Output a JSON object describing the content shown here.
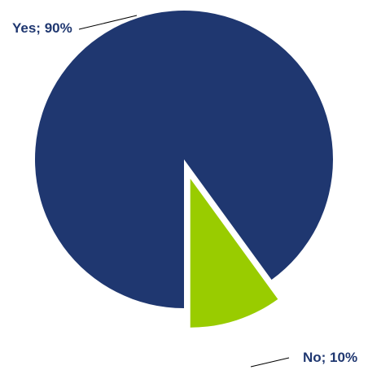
{
  "chart_data": {
    "type": "pie",
    "title": "",
    "exploded": true,
    "slices": [
      {
        "category": "Yes",
        "value": 90,
        "label": "Yes; 90%",
        "color": "#1f3770"
      },
      {
        "category": "No",
        "value": 10,
        "label": "No; 10%",
        "color": "#99cc00"
      }
    ],
    "legend": "none"
  }
}
